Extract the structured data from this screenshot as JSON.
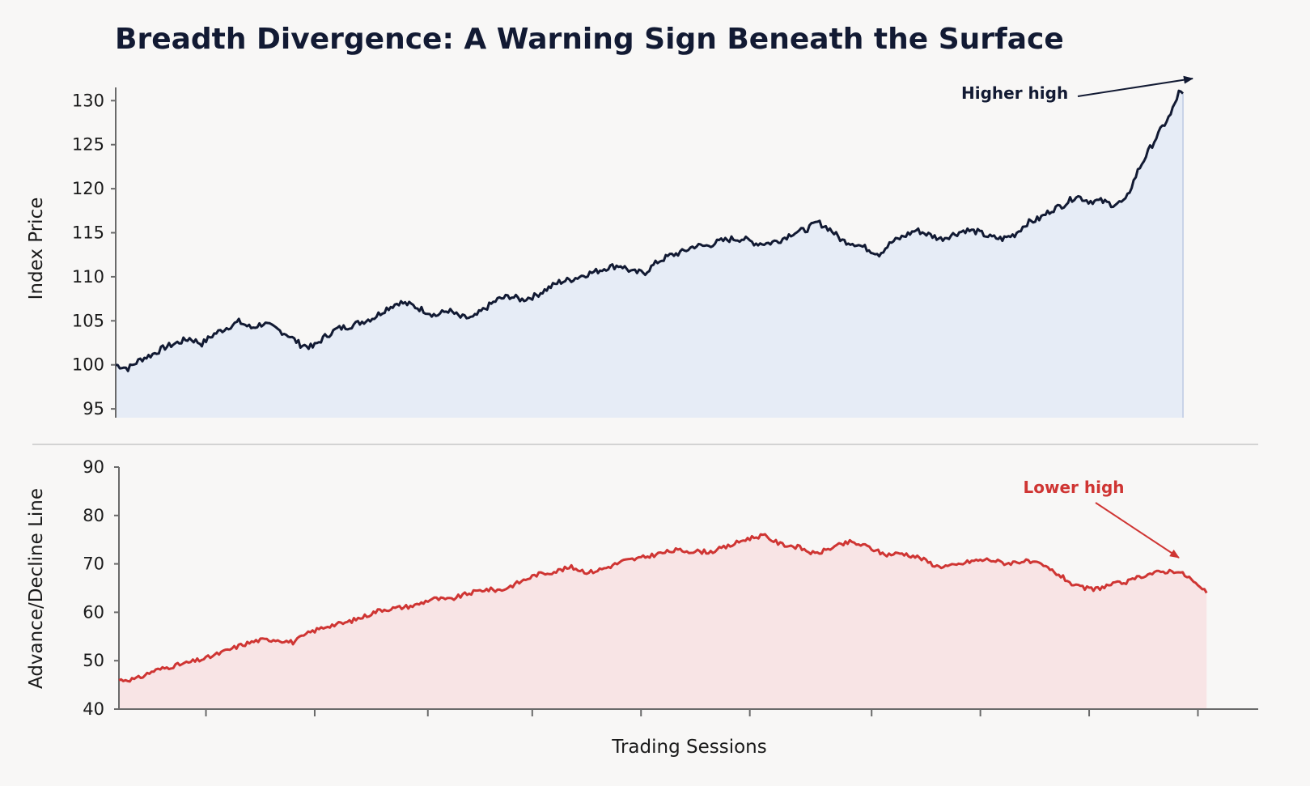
{
  "chart_data": [
    {
      "type": "area",
      "title": "Breadth Divergence: A Warning Sign Beneath the Surface",
      "xlabel": "",
      "ylabel": "Index Price",
      "ylim": [
        94,
        131.5
      ],
      "yticks": [
        95,
        100,
        105,
        110,
        115,
        120,
        125,
        130
      ],
      "xlim": [
        0,
        260
      ],
      "grid": false,
      "color": "#121a33",
      "fill": "#e6ecf6",
      "keypoints": [
        [
          0,
          100.0
        ],
        [
          3,
          99.6
        ],
        [
          6,
          100.6
        ],
        [
          9,
          101.2
        ],
        [
          12,
          102.0
        ],
        [
          15,
          102.5
        ],
        [
          18,
          103.0
        ],
        [
          21,
          102.4
        ],
        [
          24,
          103.5
        ],
        [
          27,
          104.2
        ],
        [
          30,
          104.9
        ],
        [
          33,
          104.2
        ],
        [
          36,
          104.7
        ],
        [
          39,
          104.1
        ],
        [
          42,
          103.4
        ],
        [
          45,
          102.3
        ],
        [
          48,
          102.0
        ],
        [
          51,
          103.2
        ],
        [
          54,
          104.1
        ],
        [
          57,
          104.4
        ],
        [
          60,
          104.9
        ],
        [
          63,
          105.4
        ],
        [
          66,
          106.4
        ],
        [
          69,
          107.1
        ],
        [
          72,
          106.8
        ],
        [
          75,
          106.2
        ],
        [
          78,
          105.6
        ],
        [
          81,
          106.2
        ],
        [
          84,
          105.4
        ],
        [
          87,
          105.3
        ],
        [
          90,
          106.4
        ],
        [
          93,
          107.4
        ],
        [
          96,
          107.8
        ],
        [
          99,
          107.4
        ],
        [
          102,
          107.8
        ],
        [
          105,
          108.6
        ],
        [
          108,
          109.4
        ],
        [
          111,
          109.7
        ],
        [
          114,
          110.2
        ],
        [
          117,
          110.6
        ],
        [
          120,
          111.1
        ],
        [
          123,
          111.3
        ],
        [
          126,
          110.5
        ],
        [
          129,
          110.5
        ],
        [
          132,
          111.7
        ],
        [
          135,
          112.4
        ],
        [
          138,
          112.8
        ],
        [
          141,
          113.5
        ],
        [
          144,
          113.5
        ],
        [
          147,
          114.0
        ],
        [
          150,
          114.3
        ],
        [
          153,
          114.3
        ],
        [
          156,
          113.8
        ],
        [
          159,
          113.8
        ],
        [
          162,
          114.2
        ],
        [
          165,
          115.0
        ],
        [
          168,
          115.3
        ],
        [
          171,
          116.2
        ],
        [
          174,
          115.4
        ],
        [
          177,
          114.1
        ],
        [
          180,
          113.8
        ],
        [
          183,
          113.2
        ],
        [
          186,
          112.6
        ],
        [
          189,
          113.9
        ],
        [
          192,
          114.6
        ],
        [
          195,
          115.3
        ],
        [
          198,
          114.8
        ],
        [
          201,
          114.3
        ],
        [
          204,
          114.8
        ],
        [
          207,
          115.3
        ],
        [
          210,
          115.1
        ],
        [
          213,
          114.5
        ],
        [
          216,
          114.3
        ],
        [
          219,
          114.8
        ],
        [
          222,
          116.1
        ],
        [
          225,
          116.6
        ],
        [
          228,
          117.6
        ],
        [
          231,
          118.2
        ],
        [
          234,
          119.2
        ],
        [
          237,
          118.6
        ],
        [
          240,
          118.6
        ],
        [
          243,
          118.2
        ],
        [
          246,
          118.6
        ],
        [
          249,
          122.0
        ],
        [
          252,
          124.6
        ],
        [
          255,
          127.0
        ],
        [
          257,
          128.4
        ],
        [
          259,
          130.9
        ],
        [
          260,
          130.8
        ]
      ],
      "annotations": [
        {
          "text": "Higher high",
          "color": "#121a33"
        }
      ]
    },
    {
      "type": "area",
      "title": "",
      "xlabel": "Trading Sessions",
      "ylabel": "Advance/Decline Line",
      "ylim": [
        40,
        90
      ],
      "yticks": [
        40,
        50,
        60,
        70,
        80,
        90
      ],
      "xlim": [
        0,
        260
      ],
      "grid": false,
      "color": "#cf3533",
      "fill": "#f8e4e5",
      "keypoints": [
        [
          0,
          46.0
        ],
        [
          4,
          46.2
        ],
        [
          8,
          47.9
        ],
        [
          12,
          48.8
        ],
        [
          16,
          49.6
        ],
        [
          20,
          50.5
        ],
        [
          24,
          51.8
        ],
        [
          28,
          53.2
        ],
        [
          32,
          54.2
        ],
        [
          36,
          54.4
        ],
        [
          40,
          53.8
        ],
        [
          44,
          55.9
        ],
        [
          48,
          57.2
        ],
        [
          52,
          57.8
        ],
        [
          56,
          59.0
        ],
        [
          60,
          60.5
        ],
        [
          64,
          60.9
        ],
        [
          68,
          61.4
        ],
        [
          72,
          62.8
        ],
        [
          76,
          62.6
        ],
        [
          80,
          63.8
        ],
        [
          84,
          64.7
        ],
        [
          88,
          64.6
        ],
        [
          92,
          66.2
        ],
        [
          96,
          67.8
        ],
        [
          100,
          68.4
        ],
        [
          104,
          69.3
        ],
        [
          108,
          68.2
        ],
        [
          112,
          69.2
        ],
        [
          116,
          70.6
        ],
        [
          120,
          71.2
        ],
        [
          124,
          72.1
        ],
        [
          128,
          72.8
        ],
        [
          132,
          72.6
        ],
        [
          136,
          72.5
        ],
        [
          140,
          73.6
        ],
        [
          144,
          75.1
        ],
        [
          148,
          75.9
        ],
        [
          152,
          74.1
        ],
        [
          156,
          73.5
        ],
        [
          160,
          72.0
        ],
        [
          164,
          73.4
        ],
        [
          168,
          74.5
        ],
        [
          172,
          73.6
        ],
        [
          176,
          71.9
        ],
        [
          180,
          72.2
        ],
        [
          184,
          71.3
        ],
        [
          188,
          69.5
        ],
        [
          192,
          69.6
        ],
        [
          196,
          70.6
        ],
        [
          200,
          70.9
        ],
        [
          204,
          70.1
        ],
        [
          208,
          70.6
        ],
        [
          212,
          69.8
        ],
        [
          216,
          67.8
        ],
        [
          220,
          65.3
        ],
        [
          224,
          64.7
        ],
        [
          228,
          65.7
        ],
        [
          232,
          66.3
        ],
        [
          236,
          67.8
        ],
        [
          240,
          68.4
        ],
        [
          243,
          68.6
        ],
        [
          246,
          67.2
        ],
        [
          248,
          65.4
        ],
        [
          250,
          64.0
        ]
      ],
      "annotations": [
        {
          "text": "Lower high",
          "color": "#cf3533"
        }
      ]
    }
  ]
}
